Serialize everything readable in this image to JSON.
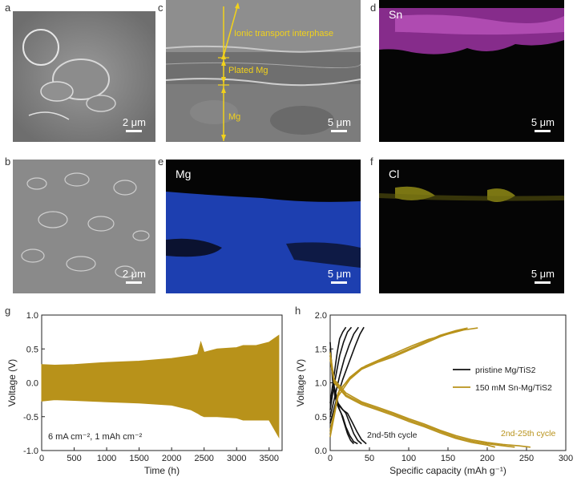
{
  "panels": {
    "a": {
      "label": "a",
      "scale": "2 μm"
    },
    "b": {
      "label": "b",
      "scale": "2 μm"
    },
    "c": {
      "label": "c",
      "scale": "5 μm",
      "annotations": [
        "Ionic transport interphase",
        "Plated Mg",
        "Mg"
      ]
    },
    "d": {
      "label": "d",
      "title": "Sn",
      "scale": "5 μm",
      "color": "#b23ab8"
    },
    "e": {
      "label": "e",
      "title": "Mg",
      "scale": "5 μm",
      "color": "#1d3fb0"
    },
    "f": {
      "label": "f",
      "title": "Cl",
      "scale": "5 μm",
      "color": "#c9c21c"
    },
    "g": {
      "label": "g"
    },
    "h": {
      "label": "h"
    }
  },
  "chart_data": [
    {
      "panel": "g",
      "type": "line",
      "xlabel": "Time (h)",
      "ylabel": "Voltage (V)",
      "xlim": [
        0,
        3700
      ],
      "ylim": [
        -1.0,
        1.0
      ],
      "xticks": [
        0,
        500,
        1000,
        1500,
        2000,
        2500,
        3000,
        3500
      ],
      "yticks": [
        -1.0,
        -0.5,
        0.0,
        0.5,
        1.0
      ],
      "color": "#b8921a",
      "annotation": "6 mA cm⁻², 1 mAh cm⁻²",
      "envelope": {
        "time": [
          0,
          200,
          500,
          1000,
          1500,
          2000,
          2300,
          2400,
          2450,
          2500,
          2700,
          3000,
          3100,
          3300,
          3500,
          3650
        ],
        "upper": [
          0.27,
          0.26,
          0.27,
          0.3,
          0.32,
          0.36,
          0.4,
          0.42,
          0.6,
          0.45,
          0.5,
          0.52,
          0.55,
          0.55,
          0.6,
          0.7
        ],
        "lower": [
          -0.27,
          -0.25,
          -0.26,
          -0.28,
          -0.3,
          -0.33,
          -0.4,
          -0.45,
          -0.48,
          -0.5,
          -0.5,
          -0.52,
          -0.55,
          -0.55,
          -0.55,
          -0.8
        ]
      }
    },
    {
      "panel": "h",
      "type": "line",
      "xlabel": "Specific capacity (mAh g⁻¹)",
      "ylabel": "Voltage (V)",
      "xlim": [
        0,
        300
      ],
      "ylim": [
        0.0,
        2.0
      ],
      "xticks": [
        0,
        50,
        100,
        150,
        200,
        250,
        300
      ],
      "yticks": [
        0.0,
        0.5,
        1.0,
        1.5,
        2.0
      ],
      "legend_position": "right",
      "annotations": [
        {
          "text": "2nd-5th cycle",
          "color": "#222222"
        },
        {
          "text": "2nd-25th cycle",
          "color": "#b8921a"
        }
      ],
      "series": [
        {
          "name": "pristine Mg/TiS2",
          "color": "#111111",
          "curves": [
            {
              "x": [
                0,
                3,
                6,
                9,
                12,
                16,
                20
              ],
              "y": [
                0.7,
                0.95,
                1.2,
                1.45,
                1.65,
                1.75,
                1.82
              ]
            },
            {
              "x": [
                0,
                4,
                8,
                12,
                17,
                22,
                27
              ],
              "y": [
                0.6,
                0.9,
                1.15,
                1.4,
                1.6,
                1.75,
                1.82
              ]
            },
            {
              "x": [
                0,
                6,
                12,
                18,
                24,
                30,
                36
              ],
              "y": [
                0.5,
                0.8,
                1.1,
                1.35,
                1.55,
                1.72,
                1.82
              ]
            },
            {
              "x": [
                0,
                8,
                16,
                24,
                32,
                38,
                43
              ],
              "y": [
                0.4,
                0.75,
                1.05,
                1.3,
                1.55,
                1.72,
                1.82
              ]
            },
            {
              "x": [
                0,
                3,
                6,
                10,
                14,
                18,
                22,
                26,
                30
              ],
              "y": [
                1.6,
                1.05,
                0.8,
                0.65,
                0.55,
                0.4,
                0.25,
                0.15,
                0.1
              ]
            },
            {
              "x": [
                0,
                4,
                8,
                12,
                16,
                20,
                25,
                30,
                35
              ],
              "y": [
                1.5,
                1.0,
                0.75,
                0.6,
                0.5,
                0.35,
                0.22,
                0.13,
                0.1
              ]
            },
            {
              "x": [
                0,
                5,
                10,
                15,
                20,
                25,
                30,
                35,
                40
              ],
              "y": [
                1.45,
                0.95,
                0.7,
                0.62,
                0.55,
                0.4,
                0.25,
                0.15,
                0.1
              ]
            },
            {
              "x": [
                0,
                5,
                10,
                16,
                22,
                28,
                34,
                40,
                46
              ],
              "y": [
                1.4,
                0.9,
                0.68,
                0.6,
                0.55,
                0.42,
                0.28,
                0.16,
                0.1
              ]
            }
          ]
        },
        {
          "name": "150 mM Sn-Mg/TiS2",
          "color": "#b8921a",
          "curves": [
            {
              "x": [
                0,
                10,
                25,
                40,
                60,
                80,
                100,
                120,
                140,
                160,
                172
              ],
              "y": [
                0.2,
                0.8,
                1.05,
                1.2,
                1.3,
                1.38,
                1.48,
                1.58,
                1.68,
                1.76,
                1.8
              ]
            },
            {
              "x": [
                0,
                10,
                25,
                40,
                60,
                80,
                100,
                120,
                140,
                160,
                175
              ],
              "y": [
                0.25,
                0.85,
                1.08,
                1.22,
                1.32,
                1.4,
                1.5,
                1.6,
                1.7,
                1.77,
                1.81
              ]
            },
            {
              "x": [
                0,
                12,
                28,
                45,
                65,
                85,
                105,
                125,
                150,
                170,
                188
              ],
              "y": [
                0.3,
                0.9,
                1.1,
                1.25,
                1.35,
                1.45,
                1.55,
                1.64,
                1.72,
                1.78,
                1.81
              ]
            },
            {
              "x": [
                0,
                5,
                20,
                40,
                60,
                80,
                100,
                120,
                140,
                160,
                180,
                200,
                210
              ],
              "y": [
                1.35,
                1.0,
                0.8,
                0.68,
                0.6,
                0.52,
                0.43,
                0.35,
                0.26,
                0.18,
                0.12,
                0.08,
                0.05
              ]
            },
            {
              "x": [
                0,
                5,
                20,
                40,
                60,
                80,
                100,
                120,
                140,
                160,
                180,
                200,
                220,
                235
              ],
              "y": [
                1.4,
                1.02,
                0.82,
                0.7,
                0.62,
                0.54,
                0.45,
                0.37,
                0.28,
                0.2,
                0.14,
                0.1,
                0.07,
                0.05
              ]
            },
            {
              "x": [
                0,
                5,
                20,
                40,
                60,
                80,
                100,
                120,
                140,
                160,
                180,
                200,
                220,
                240,
                255
              ],
              "y": [
                1.45,
                1.05,
                0.85,
                0.72,
                0.64,
                0.56,
                0.47,
                0.39,
                0.3,
                0.22,
                0.16,
                0.12,
                0.09,
                0.07,
                0.05
              ]
            }
          ]
        }
      ]
    }
  ]
}
